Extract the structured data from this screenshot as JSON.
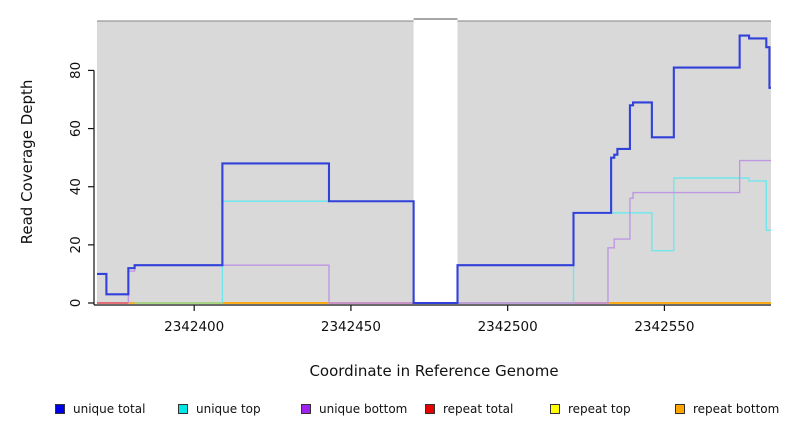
{
  "figure": {
    "xlabel": "Coordinate in Reference Genome",
    "ylabel": "Read Coverage Depth"
  },
  "legend": {
    "items": [
      {
        "label": "unique total",
        "color": "#0000e6"
      },
      {
        "label": "unique top",
        "color": "#00e6e6"
      },
      {
        "label": "unique bottom",
        "color": "#a020f0"
      },
      {
        "label": "repeat total",
        "color": "#e60000"
      },
      {
        "label": "repeat top",
        "color": "#ffff00"
      },
      {
        "label": "repeat bottom",
        "color": "#ffa500"
      }
    ]
  },
  "chart_data": {
    "type": "line",
    "subtype": "step-coverage",
    "title": "",
    "xlabel": "Coordinate in Reference Genome",
    "ylabel": "Read Coverage Depth",
    "xlim": [
      2342369,
      2342584
    ],
    "ylim": [
      0,
      97
    ],
    "xticks": [
      2342400,
      2342450,
      2342500,
      2342550
    ],
    "yticks": [
      0,
      20,
      40,
      60,
      80
    ],
    "grid": false,
    "legend_position": "bottom",
    "panel_bg": "#d9d9d9",
    "panel_border_color": "#999999",
    "masked_region": {
      "x_start": 2342470,
      "x_end": 2342484,
      "fill": "#ffffff",
      "top_line": "#888888"
    },
    "series": [
      {
        "name": "repeat total",
        "color": "#e60000",
        "line_width": 1.2,
        "start_at_zero": false,
        "points": [
          [
            2342369,
            0
          ]
        ]
      },
      {
        "name": "repeat top",
        "color": "#ffff00",
        "line_width": 1.2,
        "start_at_zero": false,
        "points": [
          [
            2342369,
            0
          ]
        ]
      },
      {
        "name": "repeat bottom",
        "color": "#ffa500",
        "line_width": 1.2,
        "start_at_zero": false,
        "points": [
          [
            2342369,
            0
          ]
        ]
      },
      {
        "name": "unique top",
        "color": "#70e7ec",
        "line_width": 1.4,
        "start_at_zero": true,
        "points": [
          [
            2342409,
            35
          ],
          [
            2342470,
            0
          ],
          [
            2342521,
            31
          ],
          [
            2342546,
            18
          ],
          [
            2342553,
            43
          ],
          [
            2342577,
            42
          ],
          [
            2342582.5,
            25
          ]
        ]
      },
      {
        "name": "unique bottom",
        "color": "#bf97e2",
        "line_width": 1.4,
        "start_at_zero": true,
        "points": [
          [
            2342379,
            11
          ],
          [
            2342381,
            13
          ],
          [
            2342443,
            0
          ],
          [
            2342532,
            19
          ],
          [
            2342534,
            22
          ],
          [
            2342539,
            36
          ],
          [
            2342540,
            38
          ],
          [
            2342574,
            49
          ]
        ]
      },
      {
        "name": "unique total",
        "color": "#3141da",
        "line_width": 2.1,
        "start_at_zero": false,
        "points": [
          [
            2342369,
            10
          ],
          [
            2342372,
            3
          ],
          [
            2342379,
            12
          ],
          [
            2342381,
            13
          ],
          [
            2342409,
            48
          ],
          [
            2342443,
            35
          ],
          [
            2342470,
            0
          ],
          [
            2342484,
            13
          ],
          [
            2342521,
            31
          ],
          [
            2342533,
            50
          ],
          [
            2342534,
            51
          ],
          [
            2342535,
            53
          ],
          [
            2342539,
            68
          ],
          [
            2342540,
            69
          ],
          [
            2342546,
            57
          ],
          [
            2342553,
            81
          ],
          [
            2342574,
            92
          ],
          [
            2342577,
            91
          ],
          [
            2342582.5,
            88
          ],
          [
            2342583.5,
            74
          ]
        ]
      }
    ],
    "baseline_segments": [
      {
        "x_start": 2342369,
        "x_end": 2342379,
        "color": "#dd5580"
      },
      {
        "x_start": 2342381,
        "x_end": 2342409,
        "color": "#8fdc8f"
      },
      {
        "x_start": 2342409,
        "x_end": 2342443,
        "color": "#ffa500"
      },
      {
        "x_start": 2342443,
        "x_end": 2342532,
        "color": "#dd5580"
      },
      {
        "x_start": 2342532,
        "x_end": 2342584,
        "color": "#ffa500"
      }
    ]
  }
}
